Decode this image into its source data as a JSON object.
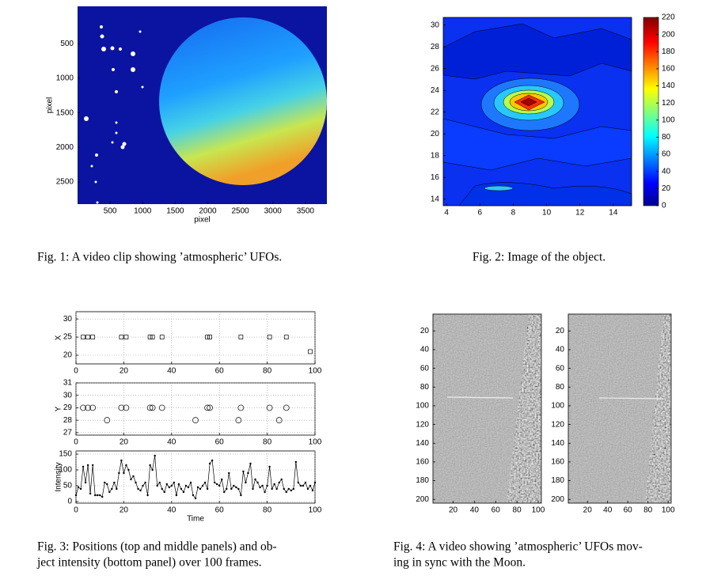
{
  "chart_data": [
    {
      "type": "image",
      "xlabel": "pixel",
      "ylabel": "pixel",
      "xlim": [
        0,
        3830
      ],
      "ylim": [
        -40,
        2820
      ],
      "y_reversed": true,
      "xticks": [
        500,
        1000,
        1500,
        2000,
        2500,
        3000,
        3500
      ],
      "yticks": [
        500,
        1000,
        1500,
        2000,
        2500
      ],
      "caption": [
        "Fig. 1: A video clip showing ’atmospheric’ UFOs."
      ]
    },
    {
      "type": "contour",
      "xlim": [
        3.8,
        15.1
      ],
      "ylim": [
        13.4,
        30.7
      ],
      "xticks": [
        4,
        6,
        8,
        10,
        12,
        14
      ],
      "yticks": [
        14,
        16,
        18,
        20,
        22,
        24,
        26,
        28,
        30
      ],
      "colorbar": {
        "ylim": [
          0,
          220
        ],
        "yticks": [
          0,
          20,
          40,
          60,
          80,
          100,
          120,
          140,
          160,
          180,
          200,
          220
        ]
      },
      "caption": [
        "Fig. 2: Image of the object."
      ]
    },
    {
      "type": "panels",
      "caption": [
        "Fig. 3: Positions (top and middle panels) and ob-",
        "ject intensity (bottom panel) over 100 frames."
      ],
      "panels": [
        {
          "type": "scatter",
          "marker": "square",
          "ylabel": "X",
          "grid": true,
          "xlim": [
            0,
            100
          ],
          "ylim": [
            17.6,
            32
          ],
          "xticks": [
            0,
            20,
            40,
            60,
            80,
            100
          ],
          "yticks": [
            20,
            25,
            30
          ],
          "x": [
            3,
            5,
            7,
            19,
            21,
            31,
            32,
            36,
            55,
            56,
            69,
            81,
            88,
            98
          ],
          "values": [
            25,
            25,
            25,
            25,
            25,
            25,
            25,
            25,
            25,
            25,
            25,
            25,
            25,
            21
          ]
        },
        {
          "type": "scatter",
          "marker": "circle",
          "ylabel": "Y",
          "grid": true,
          "xlim": [
            0,
            100
          ],
          "ylim": [
            26.8,
            31
          ],
          "xticks": [
            0,
            20,
            40,
            60,
            80,
            100
          ],
          "yticks": [
            27,
            28,
            29,
            30,
            31
          ],
          "x": [
            3,
            5,
            7,
            13,
            19,
            21,
            31,
            32,
            36,
            50,
            55,
            56,
            68,
            69,
            81,
            85,
            88
          ],
          "values": [
            29,
            29,
            29,
            28,
            29,
            29,
            29,
            29,
            29,
            28,
            29,
            29,
            28,
            29,
            29,
            28,
            29
          ]
        },
        {
          "type": "line",
          "ylabel": "Intensity",
          "xlabel": "Time",
          "grid": true,
          "xlim": [
            0,
            100
          ],
          "ylim": [
            -5,
            160
          ],
          "xticks": [
            0,
            20,
            40,
            60,
            80,
            100
          ],
          "yticks": [
            0,
            50,
            100,
            150
          ],
          "x": [
            0,
            1,
            2,
            3,
            4,
            5,
            6,
            7,
            8,
            9,
            10,
            11,
            12,
            13,
            14,
            15,
            16,
            17,
            18,
            19,
            20,
            21,
            22,
            23,
            24,
            25,
            26,
            27,
            28,
            29,
            30,
            31,
            32,
            33,
            34,
            35,
            36,
            37,
            38,
            39,
            40,
            41,
            42,
            43,
            44,
            45,
            46,
            47,
            48,
            49,
            50,
            51,
            52,
            53,
            54,
            55,
            56,
            57,
            58,
            59,
            60,
            61,
            62,
            63,
            64,
            65,
            66,
            67,
            68,
            69,
            70,
            71,
            72,
            73,
            74,
            75,
            76,
            77,
            78,
            79,
            80,
            81,
            82,
            83,
            84,
            85,
            86,
            87,
            88,
            89,
            90,
            91,
            92,
            93,
            94,
            95,
            96,
            97,
            98,
            99,
            100
          ],
          "values": [
            20,
            45,
            40,
            110,
            60,
            115,
            25,
            115,
            20,
            20,
            20,
            15,
            60,
            55,
            30,
            40,
            60,
            40,
            90,
            130,
            90,
            115,
            100,
            70,
            80,
            60,
            40,
            35,
            50,
            60,
            20,
            115,
            100,
            145,
            50,
            60,
            40,
            30,
            55,
            45,
            50,
            60,
            20,
            55,
            40,
            30,
            50,
            45,
            60,
            20,
            10,
            45,
            40,
            50,
            60,
            40,
            120,
            130,
            60,
            55,
            50,
            70,
            30,
            40,
            90,
            40,
            50,
            45,
            40,
            20,
            95,
            60,
            90,
            120,
            40,
            70,
            60,
            45,
            50,
            30,
            50,
            110,
            40,
            55,
            40,
            60,
            70,
            40,
            30,
            40,
            35,
            40,
            125,
            60,
            50,
            50,
            60,
            40,
            50,
            35,
            60
          ]
        }
      ]
    },
    {
      "type": "images",
      "caption": [
        "Fig. 4: A video showing ’atmospheric’ UFOs mov-",
        "ing in sync with the Moon."
      ],
      "panels": [
        {
          "xlim": [
            1,
            103
          ],
          "ylim": [
            2,
            204
          ],
          "y_reversed": true,
          "xticks": [
            20,
            40,
            60,
            80,
            100
          ],
          "yticks": [
            20,
            40,
            60,
            80,
            100,
            120,
            140,
            160,
            180,
            200
          ]
        },
        {
          "xlim": [
            1,
            103
          ],
          "ylim": [
            2,
            204
          ],
          "y_reversed": true,
          "xticks": [
            20,
            40,
            60,
            80,
            100
          ],
          "yticks": [
            20,
            40,
            60,
            80,
            100,
            120,
            140,
            160,
            180,
            200
          ]
        }
      ]
    }
  ]
}
